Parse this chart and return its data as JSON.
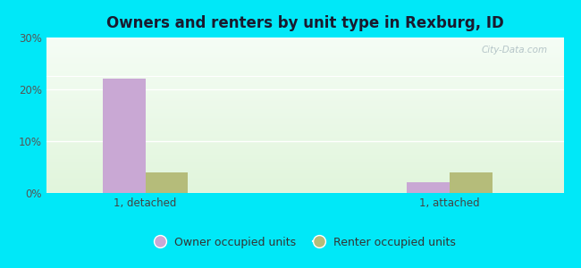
{
  "title": "Owners and renters by unit type in Rexburg, ID",
  "categories": [
    "1, detached",
    "1, attached"
  ],
  "owner_values": [
    22.0,
    2.0
  ],
  "renter_values": [
    4.0,
    4.0
  ],
  "owner_color": "#c9a8d4",
  "renter_color": "#b5bc7a",
  "ylim": [
    0,
    30
  ],
  "yticks": [
    0,
    10,
    20,
    30
  ],
  "ytick_labels": [
    "0%",
    "10%",
    "20%",
    "30%"
  ],
  "legend_owner": "Owner occupied units",
  "legend_renter": "Renter occupied units",
  "bg_color": "#00e8f8",
  "bar_width": 0.28,
  "group_positions": [
    1.0,
    3.0
  ],
  "watermark": "City-Data.com"
}
